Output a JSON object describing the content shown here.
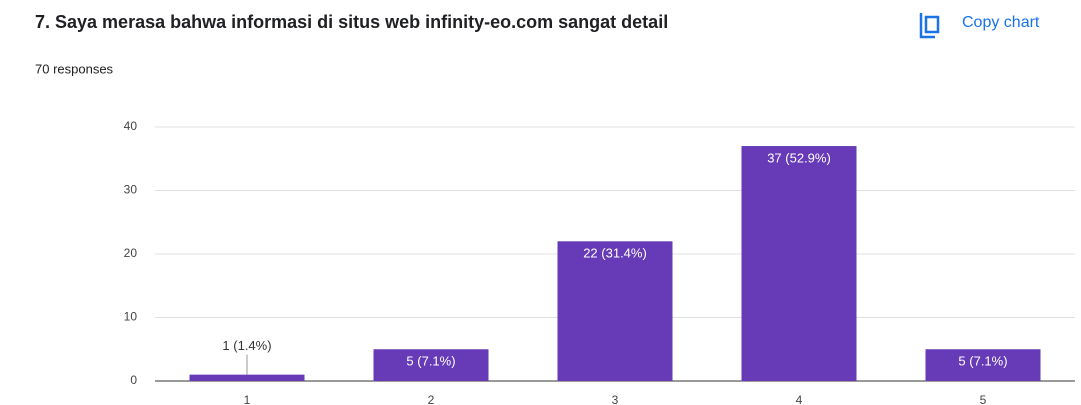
{
  "chart_data": {
    "type": "bar",
    "title": "7. Saya merasa bahwa informasi di situs web infinity-eo.com sangat detail",
    "subtitle": "70 responses",
    "action": "Copy chart",
    "categories": [
      "1",
      "2",
      "3",
      "4",
      "5"
    ],
    "values": [
      1,
      5,
      22,
      37,
      5
    ],
    "value_labels": [
      "1 (1.4%)",
      "5 (7.1%)",
      "22 (31.4%)",
      "37 (52.9%)",
      "5 (7.1%)"
    ],
    "color": "#673ab7",
    "ylim": [
      0,
      40
    ],
    "yticks": [
      0,
      10,
      20,
      30,
      40
    ],
    "grid": true
  }
}
